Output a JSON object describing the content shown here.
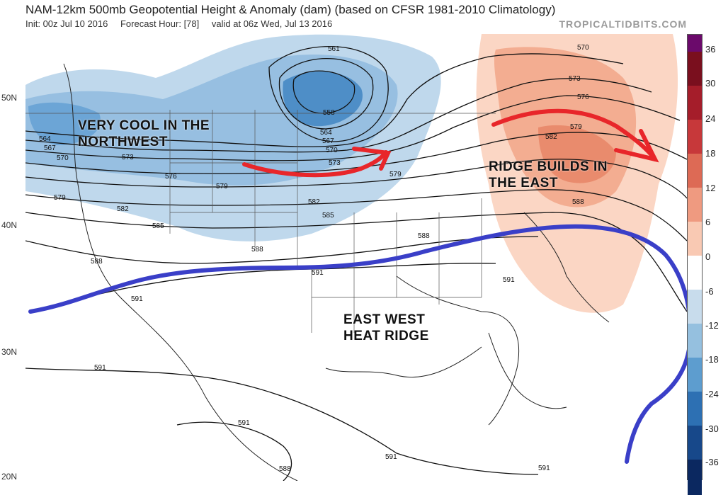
{
  "header": {
    "title": "NAM-12km 500mb Geopotential Height & Anomaly (dam) (based on CFSR 1981-2010 Climatology)",
    "init": "Init: 00z Jul 10 2016",
    "forecast_hour": "Forecast Hour: [78]",
    "valid": "valid at 06z Wed, Jul 13 2016",
    "brand": "TROPICALTIDBITS.COM"
  },
  "latitude_labels": [
    "50N",
    "40N",
    "30N",
    "20N"
  ],
  "colorbar": {
    "labels": [
      "36",
      "30",
      "24",
      "18",
      "12",
      "6",
      "0",
      "-6",
      "-12",
      "-18",
      "-24",
      "-30",
      "-36"
    ],
    "colors": [
      "#6b0a6b",
      "#7a0f1e",
      "#a51d2a",
      "#c7383a",
      "#dd6a55",
      "#ef9a80",
      "#f9c9b3",
      "#ffffff",
      "#c8dcec",
      "#95c0df",
      "#5d9dcf",
      "#2d70b3",
      "#17488a",
      "#0b2860"
    ]
  },
  "contour_labels": [
    "561",
    "558",
    "564",
    "567",
    "570",
    "573",
    "576",
    "579",
    "582",
    "585",
    "588",
    "591"
  ],
  "annotations": {
    "northwest": "VERY COOL IN THE NORTHWEST",
    "east": "RIDGE BUILDS IN THE EAST",
    "central": "EAST WEST HEAT RIDGE"
  },
  "annotation_colors": {
    "arrows": "#e8262a",
    "ridge_line": "#3a3fc8"
  }
}
